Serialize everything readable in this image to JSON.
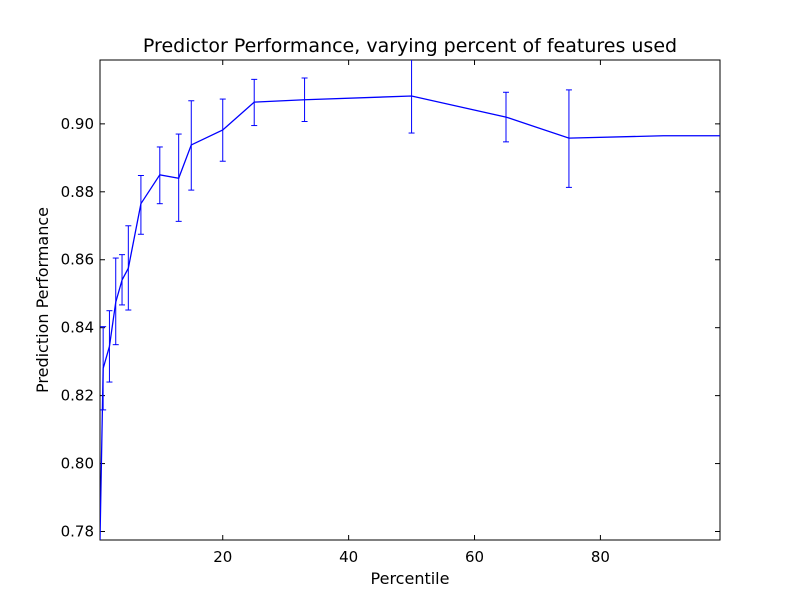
{
  "chart_data": {
    "type": "line",
    "title": "Predictor Performance, varying percent of features used",
    "xlabel": "Percentile",
    "ylabel": "Prediction Performance",
    "xlim": [
      0.5,
      99
    ],
    "ylim": [
      0.7775,
      0.9188
    ],
    "xticks": [
      20,
      40,
      60,
      80
    ],
    "yticks": [
      0.78,
      0.8,
      0.82,
      0.84,
      0.86,
      0.88,
      0.9
    ],
    "ytick_labels": [
      "0.78",
      "0.80",
      "0.82",
      "0.84",
      "0.86",
      "0.88",
      "0.90"
    ],
    "xtick_labels": [
      "20",
      "40",
      "60",
      "80"
    ],
    "grid": false,
    "color": "#0000ff",
    "series": [
      {
        "x": [
          0.5,
          1,
          2,
          3,
          4,
          5,
          7,
          10,
          13,
          15,
          20,
          25,
          33,
          50,
          65,
          75,
          90,
          99
        ],
        "y": [
          0.7775,
          0.828,
          0.8345,
          0.8475,
          0.854,
          0.8575,
          0.8765,
          0.885,
          0.884,
          0.8938,
          0.8982,
          0.9064,
          0.9071,
          0.9082,
          0.902,
          0.8958,
          0.8965,
          0.8965
        ],
        "yerr_low": [
          null,
          0.8158,
          0.824,
          0.835,
          0.8467,
          0.8452,
          0.8675,
          0.8765,
          0.8713,
          0.8805,
          0.889,
          0.8995,
          0.9007,
          0.8973,
          0.8947,
          0.8813,
          null,
          null
        ],
        "yerr_high": [
          null,
          0.8403,
          0.845,
          0.8605,
          0.8615,
          0.87,
          0.8848,
          0.8932,
          0.897,
          0.9068,
          0.9073,
          0.9131,
          0.9135,
          0.919,
          0.9093,
          0.91,
          null,
          null
        ]
      }
    ]
  }
}
